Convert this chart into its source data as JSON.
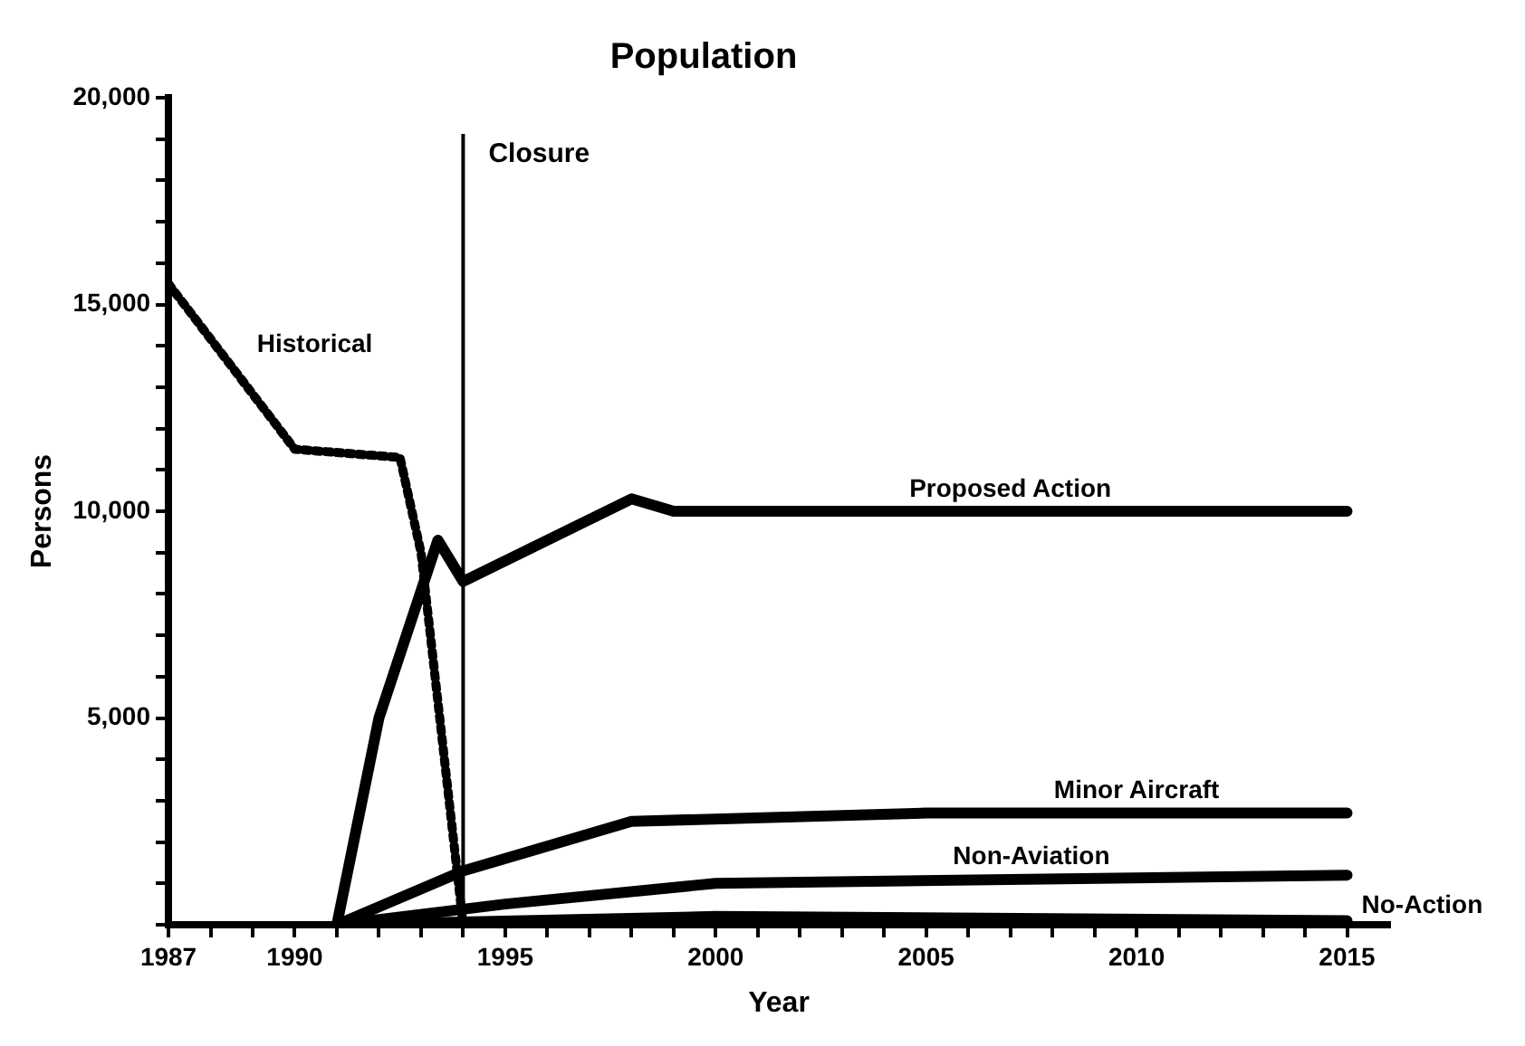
{
  "chart_data": {
    "type": "line",
    "title": "Population",
    "xlabel": "Year",
    "ylabel": "Persons",
    "xlim": [
      1987,
      2016
    ],
    "xticks": [
      1987,
      {
        "value": 1988,
        "label": null
      },
      {
        "value": 1989,
        "label": null
      },
      1990,
      {
        "value": 1991,
        "label": null
      },
      {
        "value": 1992,
        "label": null
      },
      {
        "value": 1993,
        "label": null
      },
      {
        "value": 1994,
        "label": null
      },
      1995,
      {
        "value": 1996,
        "label": null
      },
      {
        "value": 1997,
        "label": null
      },
      {
        "value": 1998,
        "label": null
      },
      {
        "value": 1999,
        "label": null
      },
      2000,
      {
        "value": 2001,
        "label": null
      },
      {
        "value": 2002,
        "label": null
      },
      {
        "value": 2003,
        "label": null
      },
      {
        "value": 2004,
        "label": null
      },
      2005,
      {
        "value": 2006,
        "label": null
      },
      {
        "value": 2007,
        "label": null
      },
      {
        "value": 2008,
        "label": null
      },
      {
        "value": 2009,
        "label": null
      },
      2010,
      {
        "value": 2011,
        "label": null
      },
      {
        "value": 2012,
        "label": null
      },
      {
        "value": 2013,
        "label": null
      },
      {
        "value": 2014,
        "label": null
      },
      2015
    ],
    "ylim": [
      0,
      20000
    ],
    "yticks": [
      {
        "value": 0,
        "label": null
      },
      {
        "value": 1000,
        "label": null
      },
      {
        "value": 2000,
        "label": null
      },
      {
        "value": 3000,
        "label": null
      },
      {
        "value": 4000,
        "label": null
      },
      {
        "value": 5000,
        "label": "5,000"
      },
      {
        "value": 6000,
        "label": null
      },
      {
        "value": 7000,
        "label": null
      },
      {
        "value": 8000,
        "label": null
      },
      {
        "value": 9000,
        "label": null
      },
      {
        "value": 10000,
        "label": "10,000"
      },
      {
        "value": 11000,
        "label": null
      },
      {
        "value": 12000,
        "label": null
      },
      {
        "value": 13000,
        "label": null
      },
      {
        "value": 14000,
        "label": null
      },
      {
        "value": 15000,
        "label": "15,000"
      },
      {
        "value": 16000,
        "label": null
      },
      {
        "value": 17000,
        "label": null
      },
      {
        "value": 18000,
        "label": null
      },
      {
        "value": 19000,
        "label": null
      },
      {
        "value": 20000,
        "label": "20,000"
      }
    ],
    "grid": false,
    "legend": false,
    "marker": "none",
    "ref_lines": [
      {
        "axis": "x",
        "value": 1994,
        "label": "Closure",
        "color": "#000000"
      }
    ],
    "series": [
      {
        "name": "Historical",
        "color": "#000000",
        "line_style": "dotted",
        "x": [
          1987,
          1990,
          1992.5,
          1993,
          1994
        ],
        "values": [
          15500,
          11500,
          11300,
          9000,
          0
        ]
      },
      {
        "name": "Proposed Action",
        "color": "#000000",
        "line_style": "solid",
        "x": [
          1991,
          1992,
          1993.4,
          1994,
          1998,
          1999,
          2015
        ],
        "values": [
          0,
          5000,
          9300,
          8300,
          10300,
          10000,
          10000
        ]
      },
      {
        "name": "Minor Aircraft",
        "color": "#000000",
        "line_style": "solid",
        "x": [
          1991,
          1994,
          1998,
          2005,
          2015
        ],
        "values": [
          0,
          1300,
          2500,
          2700,
          2700
        ]
      },
      {
        "name": "Non-Aviation",
        "color": "#000000",
        "line_style": "solid",
        "x": [
          1991,
          1995,
          2000,
          2015
        ],
        "values": [
          0,
          500,
          1000,
          1200
        ]
      },
      {
        "name": "No-Action",
        "color": "#000000",
        "line_style": "solid",
        "x": [
          1991,
          2000,
          2015
        ],
        "values": [
          0,
          200,
          100
        ]
      }
    ]
  }
}
